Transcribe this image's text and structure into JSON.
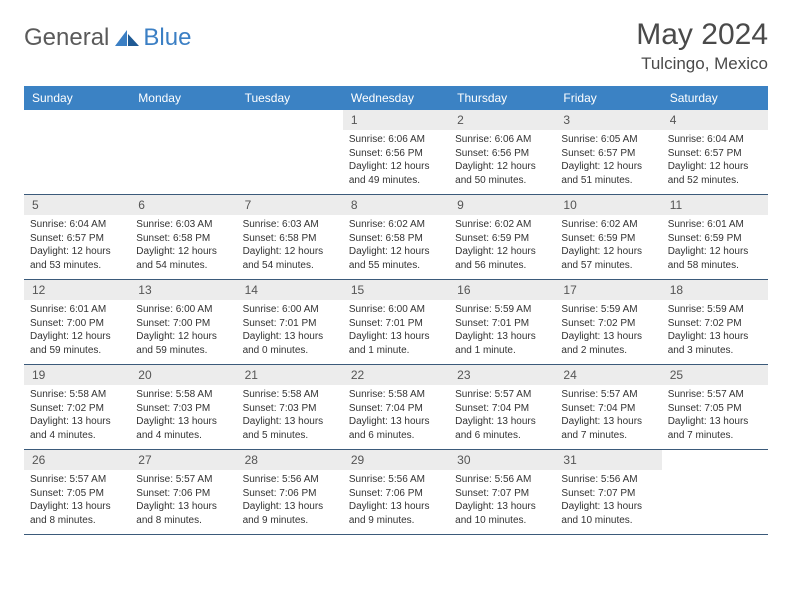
{
  "brand": {
    "part1": "General",
    "part2": "Blue"
  },
  "title": {
    "month_year": "May 2024",
    "location": "Tulcingo, Mexico"
  },
  "colors": {
    "header_bg": "#3b82c4",
    "header_text": "#ffffff",
    "daynum_bg": "#ececec",
    "border": "#3b5a7a",
    "logo_gray": "#5a5a5a",
    "logo_blue": "#3b7fc4"
  },
  "day_names": [
    "Sunday",
    "Monday",
    "Tuesday",
    "Wednesday",
    "Thursday",
    "Friday",
    "Saturday"
  ],
  "weeks": [
    [
      {
        "n": "",
        "sr": "",
        "ss": "",
        "dl1": "",
        "dl2": ""
      },
      {
        "n": "",
        "sr": "",
        "ss": "",
        "dl1": "",
        "dl2": ""
      },
      {
        "n": "",
        "sr": "",
        "ss": "",
        "dl1": "",
        "dl2": ""
      },
      {
        "n": "1",
        "sr": "Sunrise: 6:06 AM",
        "ss": "Sunset: 6:56 PM",
        "dl1": "Daylight: 12 hours",
        "dl2": "and 49 minutes."
      },
      {
        "n": "2",
        "sr": "Sunrise: 6:06 AM",
        "ss": "Sunset: 6:56 PM",
        "dl1": "Daylight: 12 hours",
        "dl2": "and 50 minutes."
      },
      {
        "n": "3",
        "sr": "Sunrise: 6:05 AM",
        "ss": "Sunset: 6:57 PM",
        "dl1": "Daylight: 12 hours",
        "dl2": "and 51 minutes."
      },
      {
        "n": "4",
        "sr": "Sunrise: 6:04 AM",
        "ss": "Sunset: 6:57 PM",
        "dl1": "Daylight: 12 hours",
        "dl2": "and 52 minutes."
      }
    ],
    [
      {
        "n": "5",
        "sr": "Sunrise: 6:04 AM",
        "ss": "Sunset: 6:57 PM",
        "dl1": "Daylight: 12 hours",
        "dl2": "and 53 minutes."
      },
      {
        "n": "6",
        "sr": "Sunrise: 6:03 AM",
        "ss": "Sunset: 6:58 PM",
        "dl1": "Daylight: 12 hours",
        "dl2": "and 54 minutes."
      },
      {
        "n": "7",
        "sr": "Sunrise: 6:03 AM",
        "ss": "Sunset: 6:58 PM",
        "dl1": "Daylight: 12 hours",
        "dl2": "and 54 minutes."
      },
      {
        "n": "8",
        "sr": "Sunrise: 6:02 AM",
        "ss": "Sunset: 6:58 PM",
        "dl1": "Daylight: 12 hours",
        "dl2": "and 55 minutes."
      },
      {
        "n": "9",
        "sr": "Sunrise: 6:02 AM",
        "ss": "Sunset: 6:59 PM",
        "dl1": "Daylight: 12 hours",
        "dl2": "and 56 minutes."
      },
      {
        "n": "10",
        "sr": "Sunrise: 6:02 AM",
        "ss": "Sunset: 6:59 PM",
        "dl1": "Daylight: 12 hours",
        "dl2": "and 57 minutes."
      },
      {
        "n": "11",
        "sr": "Sunrise: 6:01 AM",
        "ss": "Sunset: 6:59 PM",
        "dl1": "Daylight: 12 hours",
        "dl2": "and 58 minutes."
      }
    ],
    [
      {
        "n": "12",
        "sr": "Sunrise: 6:01 AM",
        "ss": "Sunset: 7:00 PM",
        "dl1": "Daylight: 12 hours",
        "dl2": "and 59 minutes."
      },
      {
        "n": "13",
        "sr": "Sunrise: 6:00 AM",
        "ss": "Sunset: 7:00 PM",
        "dl1": "Daylight: 12 hours",
        "dl2": "and 59 minutes."
      },
      {
        "n": "14",
        "sr": "Sunrise: 6:00 AM",
        "ss": "Sunset: 7:01 PM",
        "dl1": "Daylight: 13 hours",
        "dl2": "and 0 minutes."
      },
      {
        "n": "15",
        "sr": "Sunrise: 6:00 AM",
        "ss": "Sunset: 7:01 PM",
        "dl1": "Daylight: 13 hours",
        "dl2": "and 1 minute."
      },
      {
        "n": "16",
        "sr": "Sunrise: 5:59 AM",
        "ss": "Sunset: 7:01 PM",
        "dl1": "Daylight: 13 hours",
        "dl2": "and 1 minute."
      },
      {
        "n": "17",
        "sr": "Sunrise: 5:59 AM",
        "ss": "Sunset: 7:02 PM",
        "dl1": "Daylight: 13 hours",
        "dl2": "and 2 minutes."
      },
      {
        "n": "18",
        "sr": "Sunrise: 5:59 AM",
        "ss": "Sunset: 7:02 PM",
        "dl1": "Daylight: 13 hours",
        "dl2": "and 3 minutes."
      }
    ],
    [
      {
        "n": "19",
        "sr": "Sunrise: 5:58 AM",
        "ss": "Sunset: 7:02 PM",
        "dl1": "Daylight: 13 hours",
        "dl2": "and 4 minutes."
      },
      {
        "n": "20",
        "sr": "Sunrise: 5:58 AM",
        "ss": "Sunset: 7:03 PM",
        "dl1": "Daylight: 13 hours",
        "dl2": "and 4 minutes."
      },
      {
        "n": "21",
        "sr": "Sunrise: 5:58 AM",
        "ss": "Sunset: 7:03 PM",
        "dl1": "Daylight: 13 hours",
        "dl2": "and 5 minutes."
      },
      {
        "n": "22",
        "sr": "Sunrise: 5:58 AM",
        "ss": "Sunset: 7:04 PM",
        "dl1": "Daylight: 13 hours",
        "dl2": "and 6 minutes."
      },
      {
        "n": "23",
        "sr": "Sunrise: 5:57 AM",
        "ss": "Sunset: 7:04 PM",
        "dl1": "Daylight: 13 hours",
        "dl2": "and 6 minutes."
      },
      {
        "n": "24",
        "sr": "Sunrise: 5:57 AM",
        "ss": "Sunset: 7:04 PM",
        "dl1": "Daylight: 13 hours",
        "dl2": "and 7 minutes."
      },
      {
        "n": "25",
        "sr": "Sunrise: 5:57 AM",
        "ss": "Sunset: 7:05 PM",
        "dl1": "Daylight: 13 hours",
        "dl2": "and 7 minutes."
      }
    ],
    [
      {
        "n": "26",
        "sr": "Sunrise: 5:57 AM",
        "ss": "Sunset: 7:05 PM",
        "dl1": "Daylight: 13 hours",
        "dl2": "and 8 minutes."
      },
      {
        "n": "27",
        "sr": "Sunrise: 5:57 AM",
        "ss": "Sunset: 7:06 PM",
        "dl1": "Daylight: 13 hours",
        "dl2": "and 8 minutes."
      },
      {
        "n": "28",
        "sr": "Sunrise: 5:56 AM",
        "ss": "Sunset: 7:06 PM",
        "dl1": "Daylight: 13 hours",
        "dl2": "and 9 minutes."
      },
      {
        "n": "29",
        "sr": "Sunrise: 5:56 AM",
        "ss": "Sunset: 7:06 PM",
        "dl1": "Daylight: 13 hours",
        "dl2": "and 9 minutes."
      },
      {
        "n": "30",
        "sr": "Sunrise: 5:56 AM",
        "ss": "Sunset: 7:07 PM",
        "dl1": "Daylight: 13 hours",
        "dl2": "and 10 minutes."
      },
      {
        "n": "31",
        "sr": "Sunrise: 5:56 AM",
        "ss": "Sunset: 7:07 PM",
        "dl1": "Daylight: 13 hours",
        "dl2": "and 10 minutes."
      },
      {
        "n": "",
        "sr": "",
        "ss": "",
        "dl1": "",
        "dl2": ""
      }
    ]
  ]
}
